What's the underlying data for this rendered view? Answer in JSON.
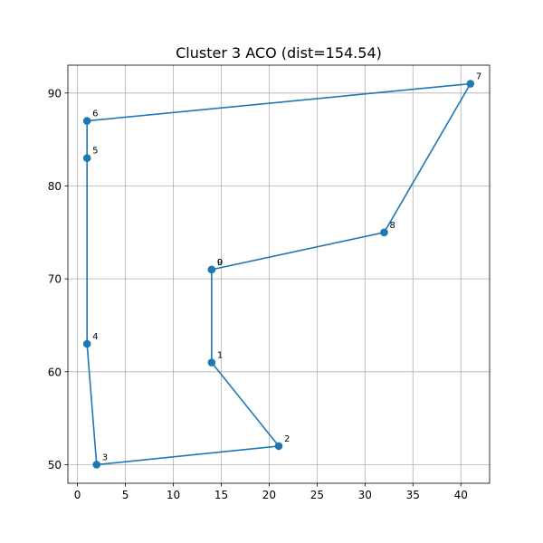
{
  "chart_data": {
    "type": "line",
    "title": "Cluster 3 ACO (dist=154.54)",
    "xlabel": "",
    "ylabel": "",
    "xlim": [
      -1,
      43
    ],
    "ylim": [
      48.0,
      93.0
    ],
    "x_ticks": [
      "0",
      "5",
      "10",
      "15",
      "20",
      "25",
      "30",
      "35",
      "40"
    ],
    "y_ticks": [
      "50",
      "60",
      "70",
      "80",
      "90"
    ],
    "grid": true,
    "color": "#1f77b4",
    "route": [
      {
        "label": "0",
        "x": 14,
        "y": 71
      },
      {
        "label": "1",
        "x": 14,
        "y": 61
      },
      {
        "label": "2",
        "x": 21,
        "y": 52
      },
      {
        "label": "3",
        "x": 2,
        "y": 50
      },
      {
        "label": "4",
        "x": 1,
        "y": 63
      },
      {
        "label": "5",
        "x": 1,
        "y": 83
      },
      {
        "label": "6",
        "x": 1,
        "y": 87
      },
      {
        "label": "7",
        "x": 41,
        "y": 91
      },
      {
        "label": "8",
        "x": 32,
        "y": 75
      },
      {
        "label": "9",
        "x": 14,
        "y": 71
      }
    ]
  }
}
